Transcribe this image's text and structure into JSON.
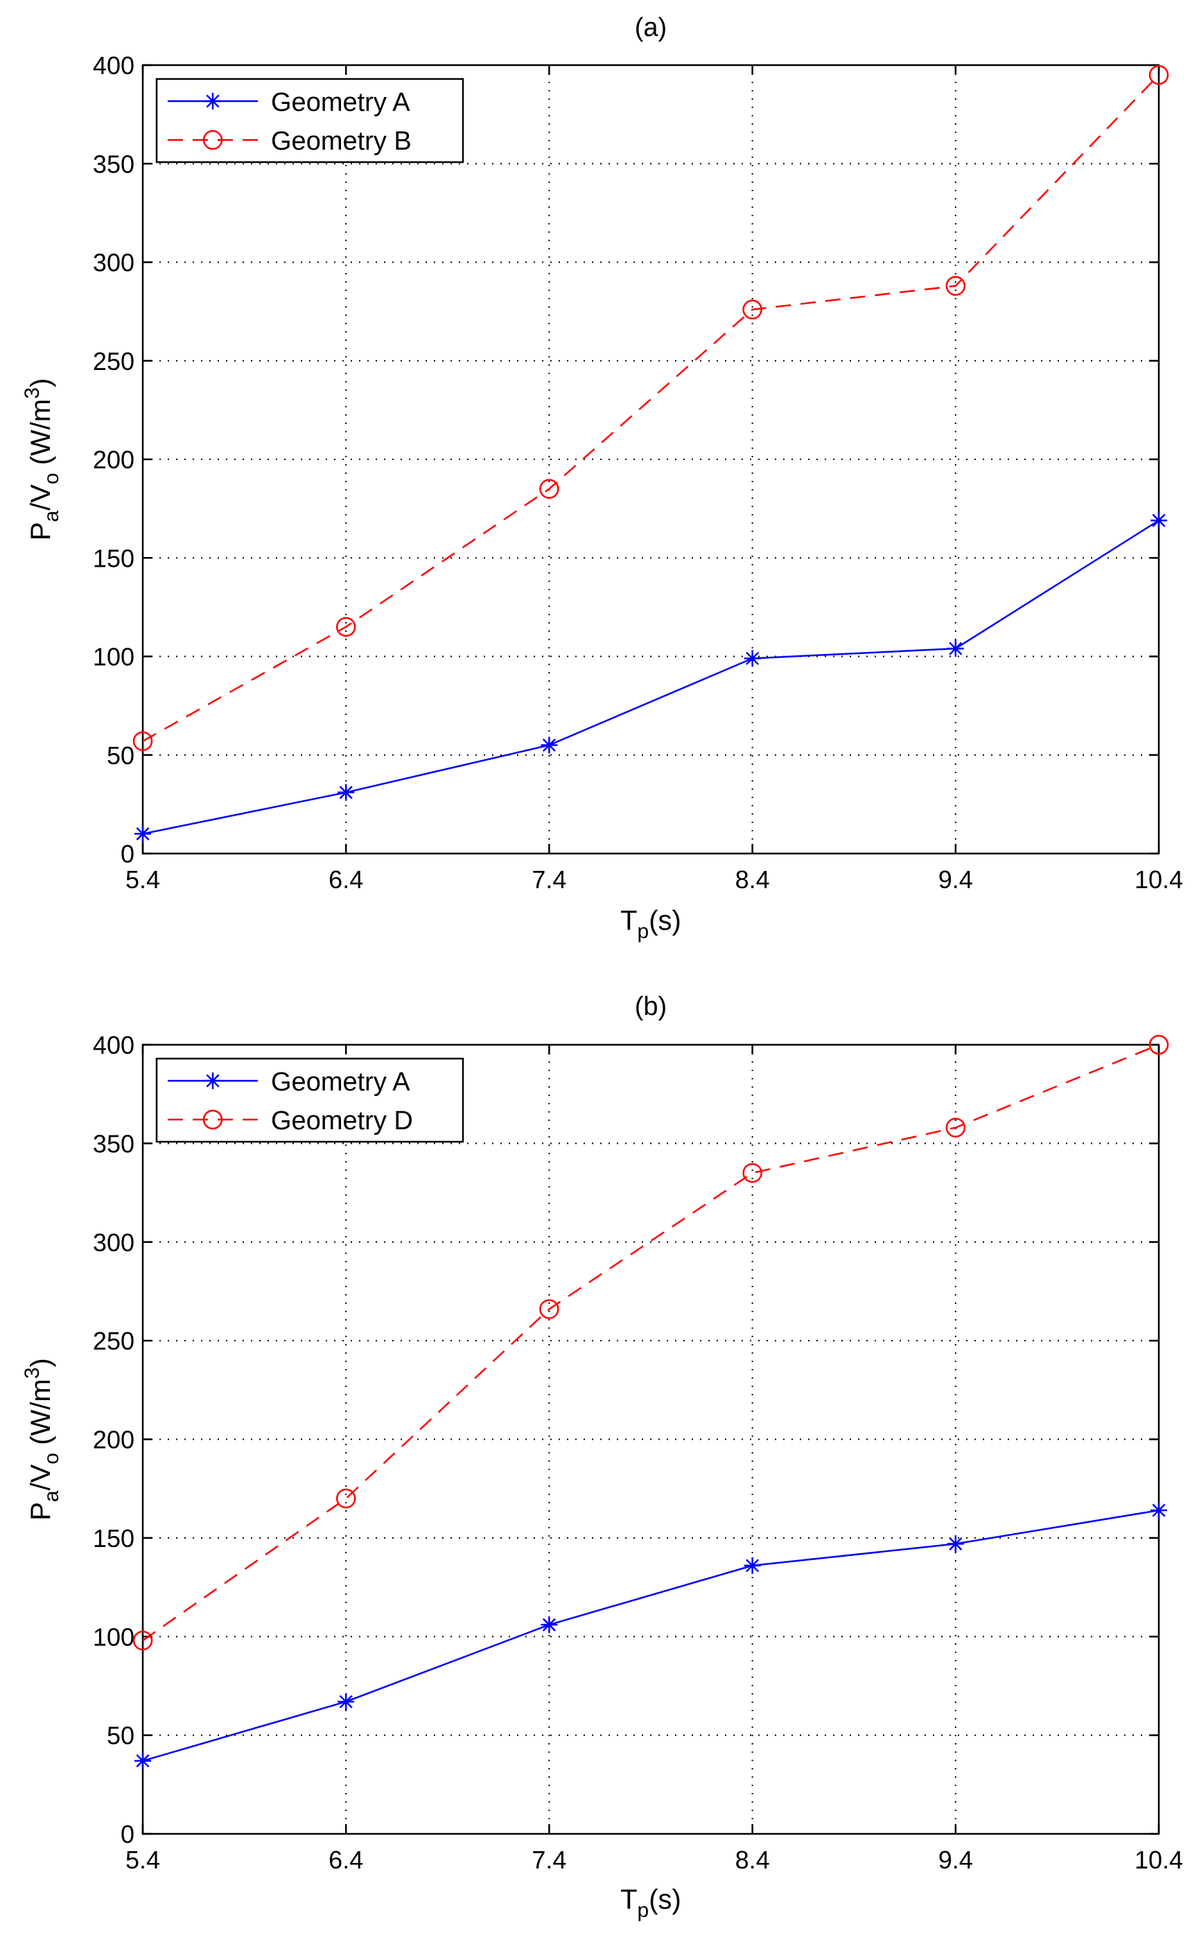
{
  "chart_data": [
    {
      "type": "line",
      "title": "(a)",
      "xlabel": "T_p(s)",
      "xlabel_main": "T",
      "xlabel_sub": "p",
      "xlabel_rest": "(s)",
      "ylabel": "P_a/V_o (W/m^3)",
      "ylabel_parts": {
        "p": "P",
        "a": "a",
        "slash_v": "/V",
        "o": "o",
        "unit": " (W/m",
        "exp": "3",
        "close": ")"
      },
      "xlim": [
        5.4,
        10.4
      ],
      "ylim": [
        0,
        400
      ],
      "x": [
        5.4,
        6.4,
        7.4,
        8.4,
        9.4,
        10.4
      ],
      "xtick_labels": [
        "5.4",
        "6.4",
        "7.4",
        "8.4",
        "9.4",
        "10.4"
      ],
      "yticks": [
        0,
        50,
        100,
        150,
        200,
        250,
        300,
        350,
        400
      ],
      "ytick_labels": [
        "0",
        "50",
        "100",
        "150",
        "200",
        "250",
        "300",
        "350",
        "400"
      ],
      "grid": true,
      "legend_position": "top-left",
      "series": [
        {
          "name": "Geometry A",
          "color": "#0000ff",
          "linestyle": "solid",
          "marker": "star",
          "values": [
            10,
            31,
            55,
            99,
            104,
            169
          ]
        },
        {
          "name": "Geometry B",
          "color": "#ff0000",
          "linestyle": "dashed",
          "marker": "circle",
          "values": [
            57,
            115,
            185,
            276,
            288,
            395
          ]
        }
      ]
    },
    {
      "type": "line",
      "title": "(b)",
      "xlabel": "T_p(s)",
      "xlabel_main": "T",
      "xlabel_sub": "p",
      "xlabel_rest": "(s)",
      "ylabel": "P_a/V_o (W/m^3)",
      "ylabel_parts": {
        "p": "P",
        "a": "a",
        "slash_v": "/V",
        "o": "o",
        "unit": " (W/m",
        "exp": "3",
        "close": ")"
      },
      "xlim": [
        5.4,
        10.4
      ],
      "ylim": [
        0,
        400
      ],
      "x": [
        5.4,
        6.4,
        7.4,
        8.4,
        9.4,
        10.4
      ],
      "xtick_labels": [
        "5.4",
        "6.4",
        "7.4",
        "8.4",
        "9.4",
        "10.4"
      ],
      "yticks": [
        0,
        50,
        100,
        150,
        200,
        250,
        300,
        350,
        400
      ],
      "ytick_labels": [
        "0",
        "50",
        "100",
        "150",
        "200",
        "250",
        "300",
        "350",
        "400"
      ],
      "grid": true,
      "legend_position": "top-left",
      "series": [
        {
          "name": "Geometry A",
          "color": "#0000ff",
          "linestyle": "solid",
          "marker": "star",
          "values": [
            37,
            67,
            106,
            136,
            147,
            164
          ]
        },
        {
          "name": "Geometry D",
          "color": "#ff0000",
          "linestyle": "dashed",
          "marker": "circle",
          "values": [
            98,
            170,
            266,
            335,
            358,
            400
          ]
        }
      ]
    }
  ]
}
